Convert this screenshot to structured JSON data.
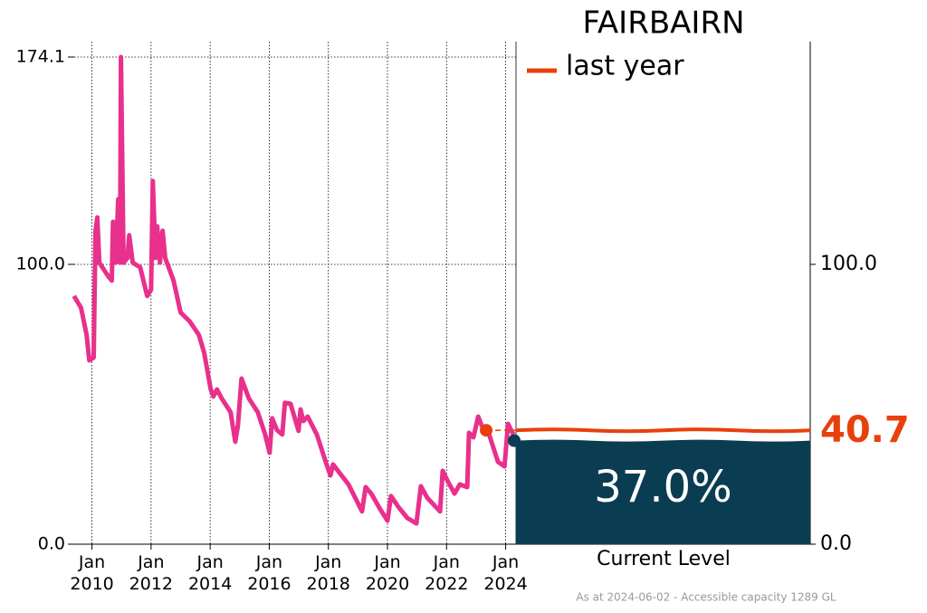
{
  "chart_data": {
    "type": "line",
    "title": "FAIRBAIRN",
    "x": [
      2009.39,
      2009.63,
      2009.82,
      2009.91,
      2010.06,
      2010.12,
      2010.18,
      2010.25,
      2010.55,
      2010.67,
      2010.71,
      2010.8,
      2010.89,
      2010.95,
      2010.98,
      2011.07,
      2011.2,
      2011.26,
      2011.38,
      2011.63,
      2011.87,
      2012.0,
      2012.06,
      2012.15,
      2012.21,
      2012.3,
      2012.39,
      2012.48,
      2012.76,
      2013.0,
      2013.31,
      2013.62,
      2013.8,
      2014.02,
      2014.11,
      2014.23,
      2014.39,
      2014.69,
      2014.85,
      2014.94,
      2015.06,
      2015.31,
      2015.61,
      2015.86,
      2016.01,
      2016.1,
      2016.26,
      2016.44,
      2016.53,
      2016.72,
      2016.99,
      2017.06,
      2017.15,
      2017.3,
      2017.61,
      2017.91,
      2018.07,
      2018.16,
      2018.37,
      2018.68,
      2019.14,
      2019.26,
      2019.45,
      2019.75,
      2020.0,
      2020.12,
      2020.37,
      2020.67,
      2020.98,
      2021.13,
      2021.35,
      2021.78,
      2021.87,
      2022.05,
      2022.27,
      2022.45,
      2022.7,
      2022.76,
      2022.91,
      2023.07,
      2023.19,
      2023.44,
      2023.74,
      2023.96,
      2024.08,
      2024.26
    ],
    "series": [
      {
        "color": "#e8308c",
        "values": [
          88.7,
          84.5,
          74.8,
          65.7,
          66.7,
          112,
          116.8,
          100.6,
          95.8,
          94.2,
          115.2,
          100.6,
          123.3,
          100.6,
          174.1,
          100.6,
          102.3,
          110.4,
          100.6,
          99.0,
          88.7,
          90.9,
          129.8,
          102.3,
          113.6,
          100.6,
          112,
          102.3,
          94.2,
          82.8,
          79.6,
          74.8,
          68.3,
          55.3,
          52.8,
          55.3,
          52.1,
          47.2,
          36.6,
          42.4,
          59.2,
          52.1,
          47.2,
          39.2,
          32.7,
          45.0,
          40.8,
          39.2,
          50.5,
          50.2,
          40.5,
          48.2,
          44.0,
          45.6,
          39.2,
          29.4,
          24.6,
          28.5,
          25.6,
          21.4,
          11.7,
          20.4,
          18.1,
          12.6,
          8.4,
          17.2,
          13.3,
          9.4,
          7.4,
          20.7,
          16.5,
          11.7,
          26.2,
          22.3,
          18.1,
          21.4,
          20.4,
          39.8,
          38.2,
          45.6,
          42.4,
          39.2,
          29.4,
          27.8,
          43.0,
          39.2
        ]
      }
    ],
    "xlim": [
      2009.4,
      2024.35
    ],
    "ylim": [
      0,
      179.6
    ],
    "xticks": [
      {
        "value": 2010,
        "label": "Jan 2010"
      },
      {
        "value": 2012,
        "label": "Jan 2012"
      },
      {
        "value": 2014,
        "label": "Jan 2014"
      },
      {
        "value": 2016,
        "label": "Jan 2016"
      },
      {
        "value": 2018,
        "label": "Jan 2018"
      },
      {
        "value": 2020,
        "label": "Jan 2020"
      },
      {
        "value": 2022,
        "label": "Jan 2022"
      },
      {
        "value": 2024,
        "label": "Jan 2024"
      }
    ],
    "yticks": [
      {
        "value": 0,
        "label": "0.0"
      },
      {
        "value": 100,
        "label": "100.0"
      },
      {
        "value": 174.1,
        "label": "174.1"
      }
    ],
    "y2ticks": [
      {
        "value": 0,
        "label": "0.0"
      },
      {
        "value": 100,
        "label": "100.0"
      }
    ],
    "grid": true,
    "last_year": {
      "label": "last year",
      "x": 2023.34,
      "value": 40.7,
      "value_label": "40.7",
      "color": "#e8400c"
    },
    "current": {
      "label": "Current Level",
      "x": 2024.29,
      "value": 37.0,
      "value_label": "37.0%",
      "color": "#0b3d52"
    },
    "note": "As at 2024-06-02 - Accessible capacity 1289 GL"
  }
}
